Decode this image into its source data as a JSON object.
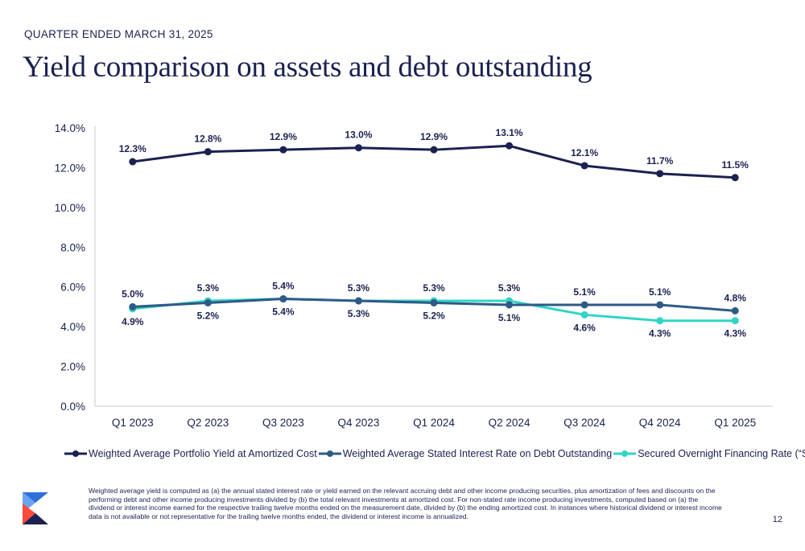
{
  "header": {
    "eyebrow": "QUARTER ENDED MARCH 31, 2025",
    "title": "Yield comparison on assets and debt outstanding"
  },
  "chart_data": {
    "type": "line",
    "categories": [
      "Q1 2023",
      "Q2 2023",
      "Q3 2023",
      "Q4 2023",
      "Q1 2024",
      "Q2 2024",
      "Q3 2024",
      "Q4 2024",
      "Q1 2025"
    ],
    "y_ticks": [
      "0.0%",
      "2.0%",
      "4.0%",
      "6.0%",
      "8.0%",
      "10.0%",
      "12.0%",
      "14.0%"
    ],
    "ylim": [
      0,
      14
    ],
    "grid": false,
    "legend_position": "bottom",
    "series": [
      {
        "name": "Weighted Average Portfolio Yield at Amortized Cost",
        "color": "#1b2150",
        "values": [
          12.3,
          12.8,
          12.9,
          13.0,
          12.9,
          13.1,
          12.1,
          11.7,
          11.5
        ],
        "labels": [
          "12.3%",
          "12.8%",
          "12.9%",
          "13.0%",
          "12.9%",
          "13.1%",
          "12.1%",
          "11.7%",
          "11.5%"
        ],
        "label_side": "above"
      },
      {
        "name": "Weighted Average Stated Interest Rate on Debt Outstanding",
        "color": "#2e5a87",
        "values": [
          5.0,
          5.2,
          5.4,
          5.3,
          5.2,
          5.1,
          5.1,
          5.1,
          4.8
        ],
        "labels": [
          "5.0%",
          "5.2%",
          "5.4%",
          "5.3%",
          "5.2%",
          "5.1%",
          "5.1%",
          "5.1%",
          "4.8%"
        ],
        "label_sides": [
          "above",
          "below",
          "below",
          "below",
          "below",
          "below",
          "above",
          "above",
          "above"
        ]
      },
      {
        "name": "Secured Overnight Financing Rate (“SOFR”)",
        "color": "#2fd6c4",
        "values": [
          4.9,
          5.3,
          5.4,
          5.3,
          5.3,
          5.3,
          4.6,
          4.3,
          4.3
        ],
        "labels": [
          "4.9%",
          "5.3%",
          "5.4%",
          "5.3%",
          "5.3%",
          "5.3%",
          "4.6%",
          "4.3%",
          "4.3%"
        ],
        "label_sides": [
          "below",
          "above",
          "above",
          "above",
          "above",
          "above",
          "below",
          "below",
          "below"
        ]
      }
    ]
  },
  "footnote": "Weighted average yield is computed as (a) the annual stated interest rate or yield earned on the relevant accruing debt and other income producing securities, plus amortization of fees and discounts on the performing debt and other income producing investments divided by (b) the total relevant investments at amortized cost. For non-stated rate income producing investments, computed based on (a) the dividend or interest income earned for the respective trailing twelve months ended on the measurement date, divided by (b) the ending amortized cost. In instances where historical dividend or interest income data is not available or not representative for the trailing twelve months ended, the dividend or interest income is annualized.",
  "page_number": "12",
  "logo": {
    "colors": [
      "#2e6fd9",
      "#ff4a3d",
      "#1b2150"
    ]
  }
}
